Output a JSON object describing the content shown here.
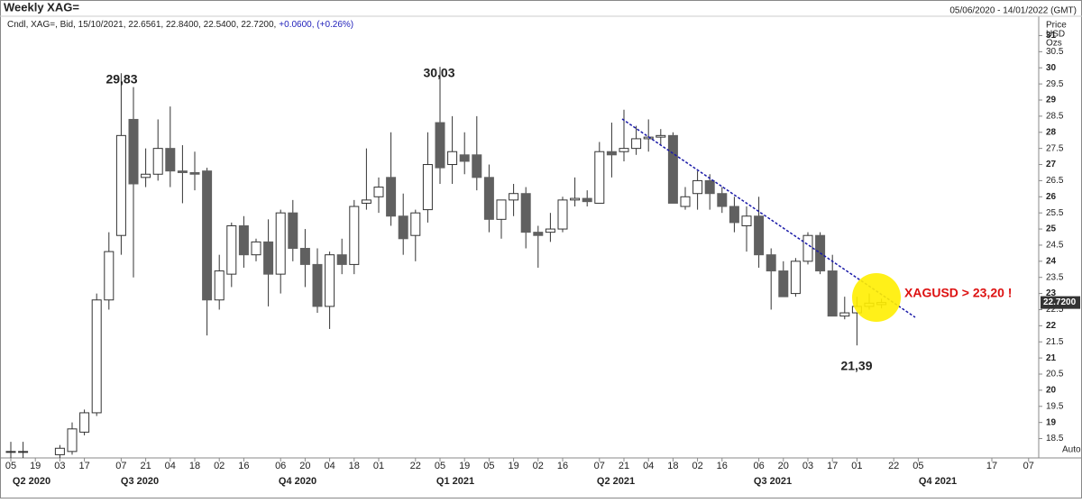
{
  "chart_data": {
    "type": "candlestick",
    "title": "Weekly XAG=",
    "date_range": "05/06/2020 - 14/01/2022 (GMT)",
    "legend_text": "Cndl, XAG=, Bid, 15/10/2021, 22.6561, 22.8400, 22.5400, 22.7200,",
    "legend_change": "+0.0600, (+0.26%)",
    "y_label": [
      "Price",
      "USD",
      "Ozs"
    ],
    "auto_label": "Auto",
    "categories": [
      "05",
      null,
      "19",
      null,
      "03",
      null,
      "17",
      null,
      null,
      "07",
      null,
      "21",
      null,
      "04",
      null,
      "18",
      null,
      "02",
      null,
      "16",
      null,
      null,
      "06",
      null,
      "20",
      null,
      "04",
      null,
      "18",
      null,
      "01",
      null,
      null,
      "22",
      null,
      "05",
      null,
      "19",
      null,
      "05",
      null,
      "19",
      null,
      "02",
      null,
      "16",
      null,
      null,
      "07",
      null,
      "21",
      null,
      "04",
      null,
      "18",
      null,
      "02",
      null,
      "16",
      null,
      null,
      "06",
      null,
      "20",
      null,
      "03",
      null,
      "17",
      null,
      "01",
      null,
      null,
      "22",
      null,
      "05",
      null,
      null,
      null,
      null,
      null,
      "17",
      null,
      null,
      "07"
    ],
    "quarters": [
      "Q2 2020",
      "Q3 2020",
      "Q4 2020",
      "Q1 2021",
      "Q2 2021",
      "Q3 2021",
      "Q4 2021"
    ],
    "open": [
      18.1,
      18.1,
      null,
      null,
      18.0,
      18.1,
      18.7,
      19.3,
      22.8,
      24.8,
      28.4,
      26.6,
      26.7,
      27.5,
      26.8,
      26.75,
      26.8,
      22.8,
      23.6,
      25.1,
      24.2,
      24.6,
      23.6,
      25.5,
      24.4,
      23.9,
      22.6,
      24.2,
      23.9,
      25.8,
      26.0,
      26.6,
      25.4,
      24.8,
      25.6,
      28.3,
      27.0,
      27.3,
      27.3,
      26.6,
      25.3,
      25.9,
      26.1,
      24.9,
      24.9,
      25.0,
      25.9,
      25.95,
      25.8,
      27.4,
      27.4,
      27.5,
      27.8,
      27.85,
      27.9,
      25.7,
      26.1,
      26.5,
      26.1,
      25.7,
      25.1,
      25.4,
      24.2,
      23.7,
      23.0,
      24.0,
      24.8,
      23.7,
      22.3,
      22.4,
      22.6,
      22.6561,
      null,
      null,
      null,
      null,
      null,
      null,
      null,
      null,
      null,
      null,
      null,
      null
    ],
    "high": [
      18.4,
      18.4,
      null,
      null,
      18.3,
      19.0,
      19.4,
      23.0,
      24.9,
      29.83,
      29.4,
      27.5,
      28.4,
      28.8,
      27.6,
      27.4,
      26.9,
      24.2,
      25.2,
      25.4,
      24.7,
      25.3,
      25.6,
      25.9,
      25.0,
      24.4,
      24.3,
      24.7,
      25.9,
      27.5,
      26.6,
      28.0,
      26.1,
      25.6,
      28.0,
      30.03,
      28.5,
      28.0,
      28.5,
      27.0,
      25.9,
      26.4,
      26.3,
      25.1,
      25.5,
      26.0,
      26.6,
      26.2,
      27.7,
      28.3,
      28.7,
      28.2,
      28.4,
      28.1,
      28.0,
      26.3,
      26.8,
      26.7,
      26.3,
      26.0,
      25.7,
      26.0,
      24.4,
      24.0,
      24.1,
      24.9,
      24.9,
      24.2,
      22.9,
      22.9,
      23.0,
      22.84,
      null,
      null,
      null,
      null,
      null,
      null,
      null,
      null,
      null,
      null,
      null,
      null
    ],
    "low": [
      17.9,
      17.9,
      null,
      null,
      17.9,
      18.0,
      18.6,
      19.2,
      22.5,
      24.2,
      23.5,
      26.3,
      26.5,
      26.3,
      25.8,
      26.2,
      21.7,
      22.5,
      23.2,
      23.8,
      24.0,
      22.6,
      23.0,
      24.0,
      23.2,
      22.4,
      21.9,
      23.6,
      23.6,
      25.6,
      25.5,
      25.1,
      24.2,
      24.0,
      25.2,
      26.4,
      26.4,
      26.7,
      26.2,
      24.9,
      24.7,
      25.4,
      24.4,
      23.8,
      24.6,
      24.9,
      25.7,
      25.7,
      25.8,
      26.6,
      27.1,
      27.3,
      27.4,
      27.6,
      25.8,
      25.6,
      25.6,
      25.6,
      25.5,
      24.9,
      24.3,
      23.8,
      22.5,
      22.9,
      22.9,
      23.9,
      23.6,
      22.3,
      22.2,
      21.39,
      22.5,
      22.54,
      null,
      null,
      null,
      null,
      null,
      null,
      null,
      null,
      null,
      null,
      null,
      null
    ],
    "close": [
      18.1,
      18.1,
      null,
      null,
      18.2,
      18.8,
      19.3,
      22.8,
      24.3,
      27.9,
      26.4,
      26.7,
      27.5,
      26.8,
      26.75,
      26.7,
      22.8,
      23.7,
      25.1,
      24.2,
      24.6,
      23.6,
      25.5,
      24.4,
      23.9,
      22.6,
      24.2,
      23.9,
      25.7,
      25.9,
      26.3,
      25.4,
      24.7,
      25.5,
      27.0,
      26.9,
      27.4,
      27.1,
      26.6,
      25.3,
      25.9,
      26.1,
      24.9,
      24.8,
      25.0,
      25.9,
      25.95,
      25.85,
      27.4,
      27.3,
      27.5,
      27.8,
      27.85,
      27.9,
      25.8,
      26.0,
      26.5,
      26.1,
      25.7,
      25.2,
      25.4,
      24.2,
      23.7,
      22.9,
      24.0,
      24.8,
      23.7,
      22.3,
      22.4,
      22.6,
      22.7,
      22.72,
      null,
      null,
      null,
      null,
      null,
      null,
      null,
      null,
      null,
      null,
      null,
      null
    ],
    "up_color": "#ffffff",
    "down_color": "#606060",
    "ylim": [
      17.9,
      31.6
    ],
    "yticks": [
      18.5,
      19,
      19.5,
      20,
      20.5,
      21,
      21.5,
      22,
      22.5,
      23,
      23.5,
      24,
      24.5,
      25,
      25.5,
      26,
      26.5,
      27,
      27.5,
      28,
      28.5,
      29,
      29.5,
      30,
      30.5,
      31
    ],
    "last_price": {
      "value": 22.72,
      "label": "22.7200"
    },
    "annotations": [
      "29,83",
      "30,03",
      "21,39",
      "XAGUSD > 23,20 !"
    ]
  }
}
